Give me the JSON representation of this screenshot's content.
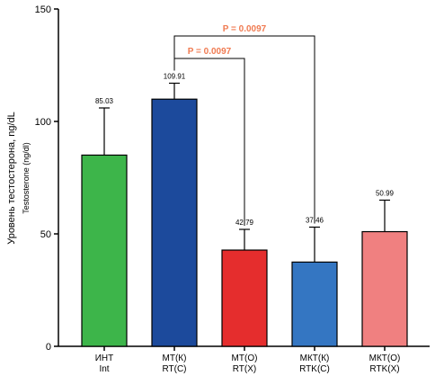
{
  "chart_data": {
    "type": "bar",
    "ylabel": "Уровень тестостерона, ng/dL",
    "ylabel_secondary": "Testosterone (ng/dl)",
    "ylim": [
      0,
      150
    ],
    "yticks": [
      0,
      50,
      100,
      150
    ],
    "grid": false,
    "categories": [
      {
        "line1": "ИНТ",
        "line2": "Int"
      },
      {
        "line1": "МТ(К)",
        "line2": "RT(C)"
      },
      {
        "line1": "МТ(О)",
        "line2": "RT(X)"
      },
      {
        "line1": "МКТ(К)",
        "line2": "RTK(C)"
      },
      {
        "line1": "МКТ(О)",
        "line2": "RTK(X)"
      }
    ],
    "values": [
      85.03,
      109.91,
      42.79,
      37.46,
      50.99
    ],
    "error_upper": [
      106,
      117,
      52,
      53,
      65
    ],
    "value_labels": [
      "85.03",
      "109.91",
      "42.79",
      "37.46",
      "50.99"
    ],
    "colors": [
      "#3db54a",
      "#1c4a9c",
      "#e52d2d",
      "#3476c2",
      "#f08080"
    ],
    "significance": [
      {
        "from": 1,
        "to": 3,
        "y": 138,
        "label": "P = 0.0097",
        "color": "#f07b52"
      },
      {
        "from": 1,
        "to": 2,
        "y": 128,
        "label": "P = 0.0097",
        "color": "#f07b52"
      }
    ]
  }
}
